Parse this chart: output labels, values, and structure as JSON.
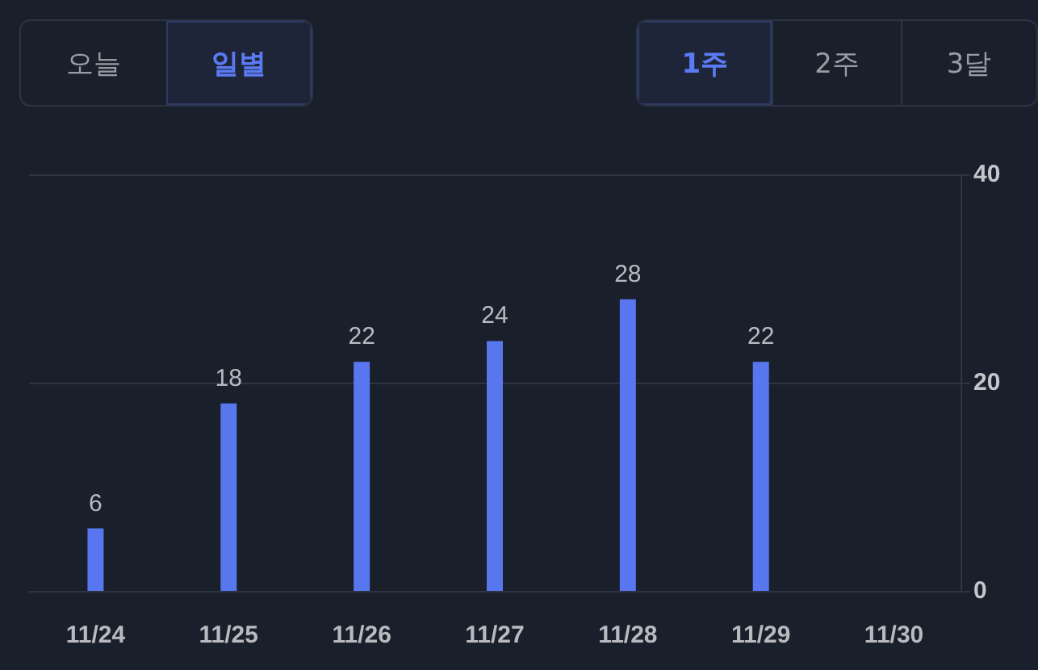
{
  "chart_data": {
    "type": "bar",
    "categories": [
      "11/24",
      "11/25",
      "11/26",
      "11/27",
      "11/28",
      "11/29",
      "11/30"
    ],
    "values": [
      6,
      18,
      22,
      24,
      28,
      22,
      null
    ],
    "color": "#5876ee",
    "ylim": [
      0,
      40
    ],
    "yticks": [
      0,
      20,
      40
    ],
    "grid": "y",
    "data_labels": true,
    "annotations": [
      "오늘",
      "일별",
      "1주",
      "2주",
      "3달"
    ]
  }
}
